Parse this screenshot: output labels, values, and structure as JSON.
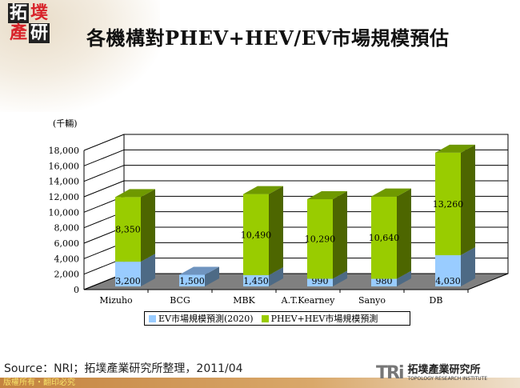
{
  "header": {
    "logo_chars": [
      "拓",
      "墣",
      "產",
      "研"
    ],
    "title": "各機構對PHEV+HEV/EV市場規模預估"
  },
  "chart_data": {
    "type": "bar",
    "stacked": true,
    "three_d": true,
    "title": "各機構對PHEV+HEV/EV市場規模預估",
    "unit_label": "(千輛)",
    "xlabel": "",
    "ylabel": "(千輛)",
    "categories": [
      "Mizuho",
      "BCG",
      "MBK",
      "A.T.Kearney",
      "Sanyo",
      "DB"
    ],
    "series": [
      {
        "name": "EV市場規模預測(2020)",
        "color": "#99ccff",
        "values": [
          3200,
          1500,
          1450,
          990,
          980,
          4030
        ]
      },
      {
        "name": "PHEV+HEV市場規模預測",
        "color": "#99cc00",
        "values": [
          8350,
          null,
          10490,
          10290,
          10640,
          13260
        ]
      }
    ],
    "value_labels": {
      "ev": [
        "3,200",
        "1,500",
        "1,450",
        "990",
        "980",
        "4,030"
      ],
      "phev": [
        "8,350",
        "",
        "10,490",
        "10,290",
        "10,640",
        "13,260"
      ]
    },
    "yticks": [
      "0",
      "2,000",
      "4,000",
      "6,000",
      "8,000",
      "10,000",
      "12,000",
      "14,000",
      "16,000",
      "18,000"
    ],
    "ylim": [
      0,
      18000
    ],
    "grid": true,
    "legend_position": "bottom"
  },
  "legend": {
    "items": [
      {
        "label": "EV市場規模預測(2020)",
        "color": "#99ccff"
      },
      {
        "label": "PHEV+HEV市場規模預測",
        "color": "#99cc00"
      }
    ]
  },
  "footer": {
    "source": "Source：NRI；拓墣產業研究所整理，2011/04",
    "copyright": "版權所有・翻印必究",
    "tri_mark": "TRi",
    "tri_cn": "拓墣產業研究所",
    "tri_en": "TOPOLOGY RESEARCH INSTITUTE"
  }
}
